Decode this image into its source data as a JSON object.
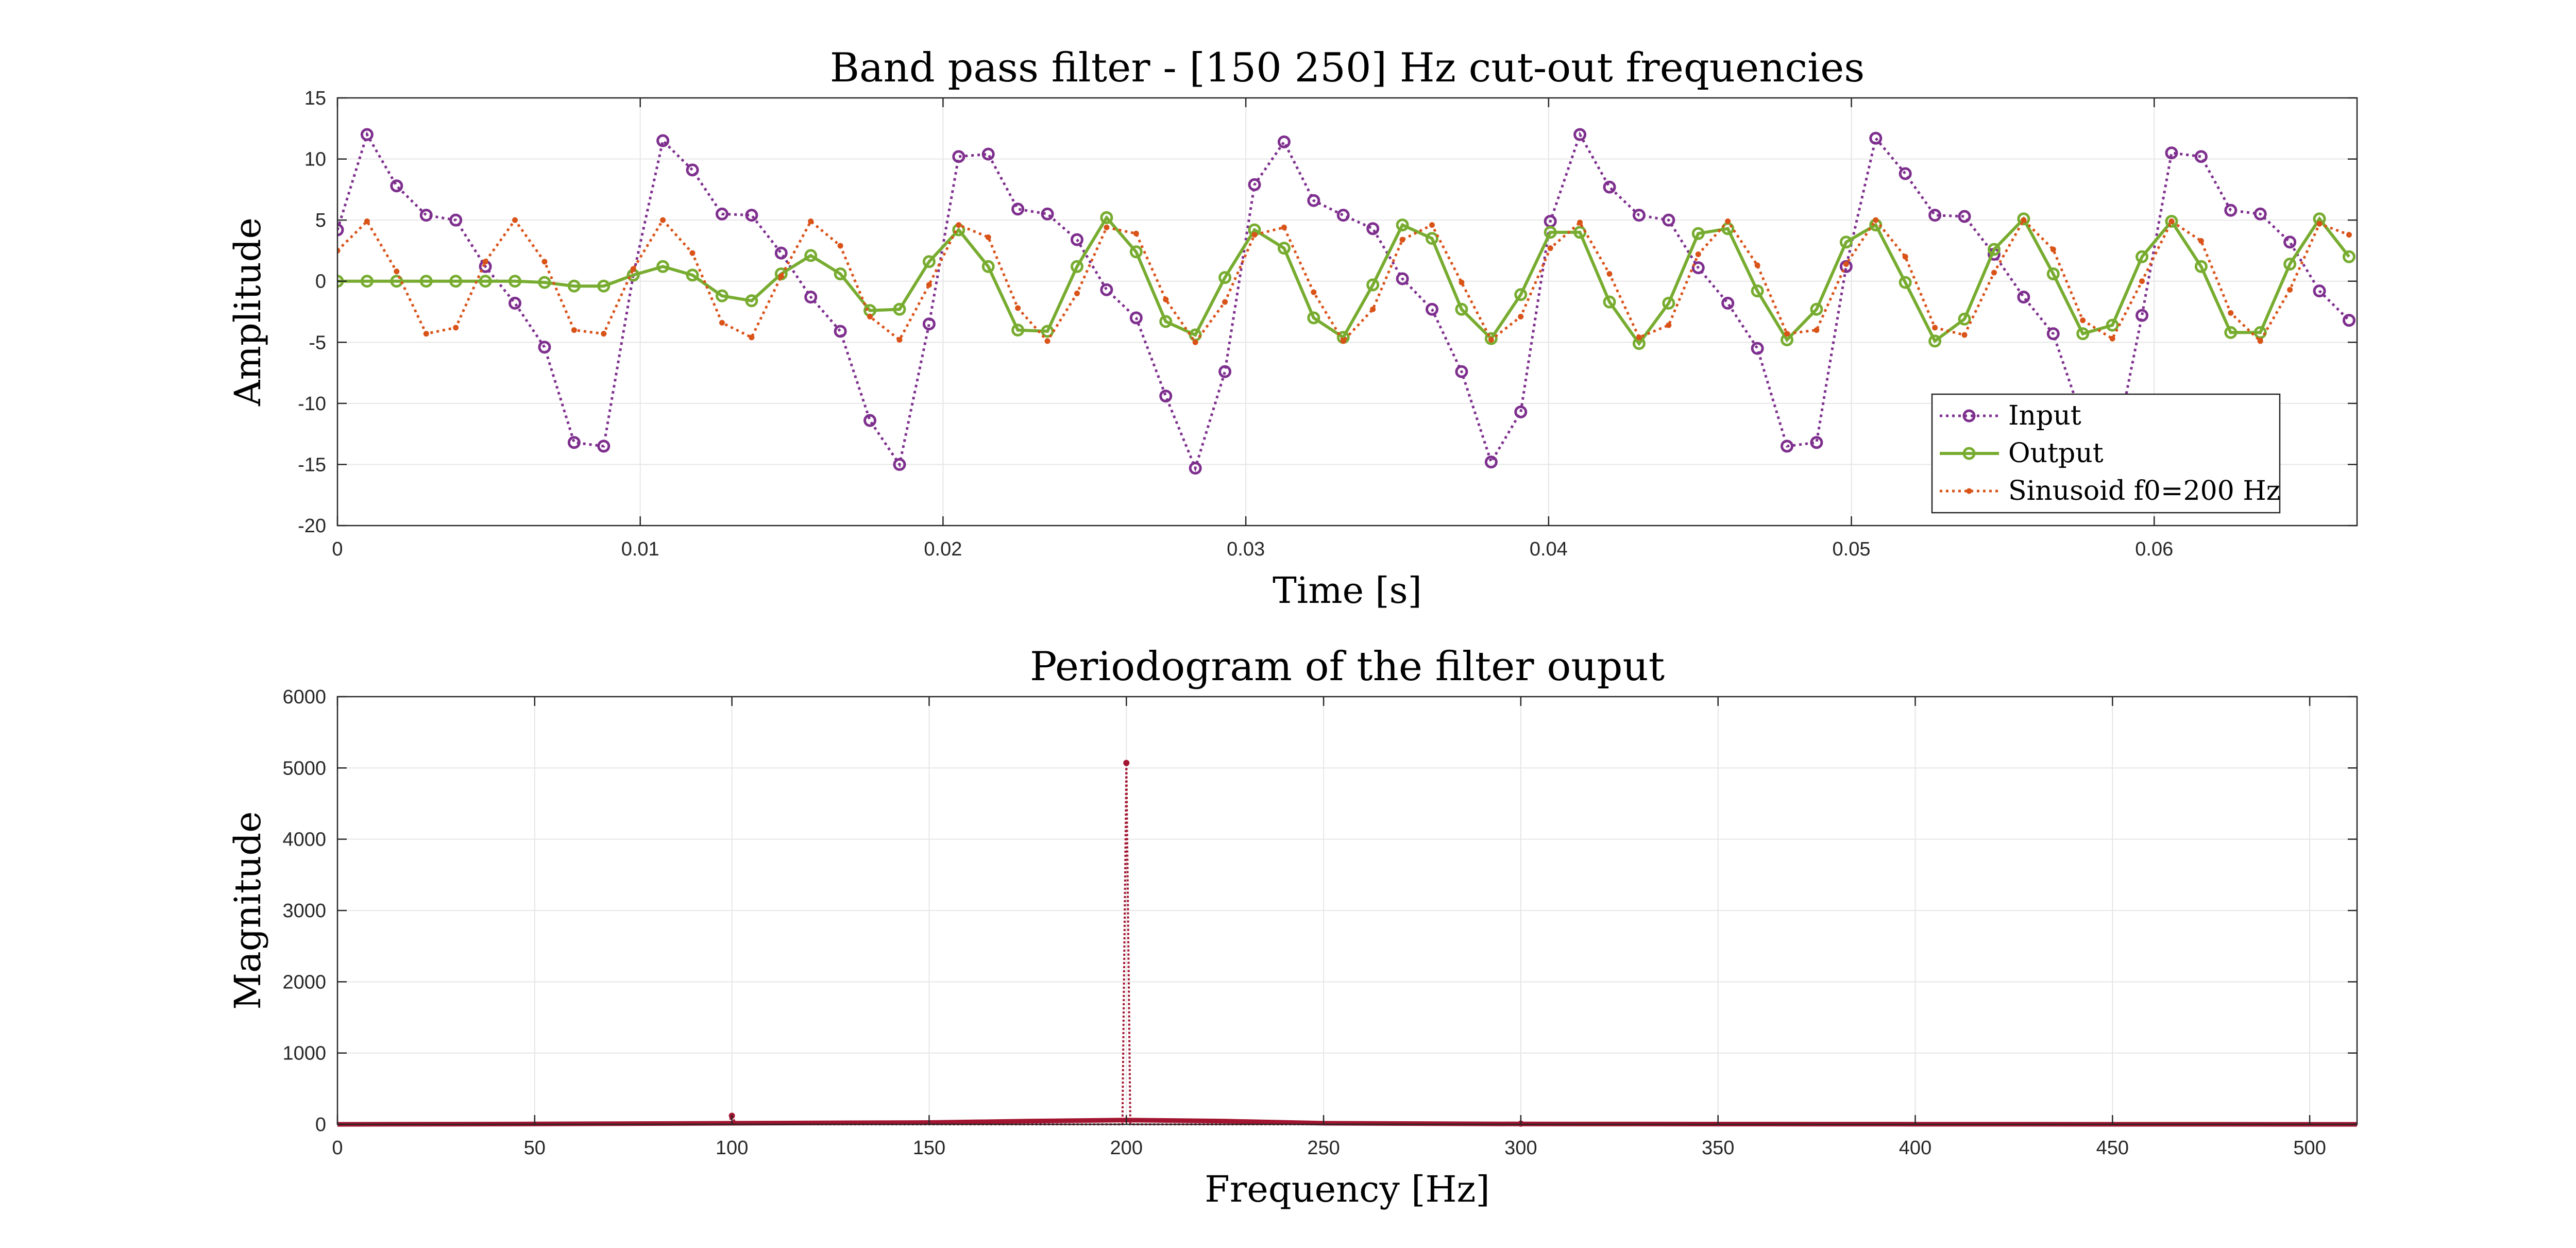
{
  "chart_data": [
    {
      "type": "line",
      "title": "Band pass filter - [150 250] Hz cut-out frequencies",
      "xlabel": "Time [s]",
      "ylabel": "Amplitude",
      "xlim": [
        0,
        0.0667
      ],
      "ylim": [
        -20,
        15
      ],
      "xticks": [
        0,
        0.01,
        0.02,
        0.03,
        0.04,
        0.05,
        0.06
      ],
      "xtick_labels": [
        "0",
        "0.01",
        "0.02",
        "0.03",
        "0.04",
        "0.05",
        "0.06"
      ],
      "yticks": [
        -20,
        -15,
        -10,
        -5,
        0,
        5,
        10,
        15
      ],
      "ytick_labels": [
        "-20",
        "-15",
        "-10",
        "-5",
        "0",
        "5",
        "10",
        "15"
      ],
      "grid": true,
      "legend_position": "bottom-right",
      "sample_step": 0.000977,
      "series": [
        {
          "name": "Input",
          "color": "#7e2f8e",
          "line_style": "dotted",
          "marker": "circle",
          "values": [
            4.2,
            12.0,
            7.8,
            5.4,
            5.0,
            1.2,
            -1.8,
            -5.4,
            -13.2,
            -13.5,
            0.5,
            11.5,
            9.1,
            5.5,
            5.4,
            2.3,
            -1.3,
            -4.1,
            -11.4,
            -15.0,
            -3.5,
            10.2,
            10.4,
            5.9,
            5.5,
            3.4,
            -0.7,
            -3.0,
            -9.4,
            -15.3,
            -7.4,
            7.9,
            11.4,
            6.6,
            5.4,
            4.3,
            0.2,
            -2.3,
            -7.4,
            -14.8,
            -10.7,
            4.9,
            12.0,
            7.7,
            5.4,
            5.0,
            1.1,
            -1.8,
            -5.5,
            -13.5,
            -13.2,
            1.2,
            11.7,
            8.8,
            5.4,
            5.3,
            2.2,
            -1.3,
            -4.3,
            -11.4,
            -14.9,
            -2.8,
            10.5,
            10.2,
            5.8,
            5.5,
            3.2,
            -0.8,
            -3.2
          ]
        },
        {
          "name": "Output",
          "color": "#77ac30",
          "line_style": "solid",
          "marker": "circle",
          "values": [
            0.0,
            0.0,
            0.0,
            0.0,
            0.0,
            0.0,
            0.0,
            -0.1,
            -0.4,
            -0.4,
            0.5,
            1.2,
            0.5,
            -1.2,
            -1.6,
            0.6,
            2.1,
            0.6,
            -2.4,
            -2.3,
            1.6,
            4.2,
            1.2,
            -4.0,
            -4.1,
            1.2,
            5.2,
            2.4,
            -3.3,
            -4.4,
            0.3,
            4.2,
            2.7,
            -3.0,
            -4.6,
            -0.3,
            4.6,
            3.5,
            -2.3,
            -4.7,
            -1.1,
            4.0,
            4.0,
            -1.7,
            -5.1,
            -1.8,
            3.9,
            4.3,
            -0.8,
            -4.8,
            -2.3,
            3.2,
            4.6,
            -0.1,
            -4.9,
            -3.1,
            2.6,
            5.1,
            0.6,
            -4.3,
            -3.6,
            2.0,
            4.9,
            1.2,
            -4.2,
            -4.2,
            1.4,
            5.1,
            2.0
          ]
        },
        {
          "name": "Sinusoid f0=200 Hz",
          "color": "#d95319",
          "line_style": "dotted",
          "marker": "dot",
          "values": [
            2.5,
            4.9,
            0.8,
            -4.3,
            -3.8,
            1.6,
            5.0,
            1.6,
            -4.0,
            -4.3,
            1.0,
            5.0,
            2.3,
            -3.4,
            -4.6,
            0.4,
            4.9,
            2.9,
            -2.9,
            -4.8,
            -0.3,
            4.6,
            3.6,
            -2.2,
            -4.9,
            -1.0,
            4.4,
            3.9,
            -1.5,
            -5.0,
            -1.7,
            3.8,
            4.4,
            -0.9,
            -4.9,
            -2.3,
            3.4,
            4.6,
            -0.1,
            -4.8,
            -2.9,
            2.7,
            4.8,
            0.6,
            -4.6,
            -3.6,
            2.2,
            4.9,
            1.3,
            -4.3,
            -4.0,
            1.4,
            5.0,
            2.0,
            -3.8,
            -4.4,
            0.7,
            5.0,
            2.6,
            -3.2,
            -4.7,
            0.0,
            4.9,
            3.3,
            -2.6,
            -4.9,
            -0.7,
            4.7,
            3.8
          ]
        }
      ]
    },
    {
      "type": "line",
      "title": "Periodogram of the filter ouput",
      "xlabel": "Frequency [Hz]",
      "ylabel": "Magnitude",
      "xlim": [
        0,
        512
      ],
      "ylim": [
        0,
        6000
      ],
      "xticks": [
        0,
        50,
        100,
        150,
        200,
        250,
        300,
        350,
        400,
        450,
        500
      ],
      "xtick_labels": [
        "0",
        "50",
        "100",
        "150",
        "200",
        "250",
        "300",
        "350",
        "400",
        "450",
        "500"
      ],
      "yticks": [
        0,
        1000,
        2000,
        3000,
        4000,
        5000,
        6000
      ],
      "ytick_labels": [
        "0",
        "1000",
        "2000",
        "3000",
        "4000",
        "5000",
        "6000"
      ],
      "grid": true,
      "series": [
        {
          "color": "#a2142f",
          "line_style": "dotted",
          "marker": "dot",
          "x": [
            0,
            99,
            100,
            101,
            199,
            200,
            201,
            299,
            300,
            301,
            512
          ],
          "values": [
            0,
            0,
            120,
            0,
            0,
            5070,
            0,
            0,
            10,
            0,
            0
          ]
        },
        {
          "color": "#a2142f",
          "line_style": "solid",
          "marker": "none",
          "x": [
            0,
            50,
            100,
            150,
            175,
            200,
            225,
            250,
            300,
            400,
            512
          ],
          "values": [
            0,
            5,
            15,
            25,
            45,
            60,
            45,
            15,
            5,
            2,
            0
          ]
        }
      ]
    }
  ]
}
